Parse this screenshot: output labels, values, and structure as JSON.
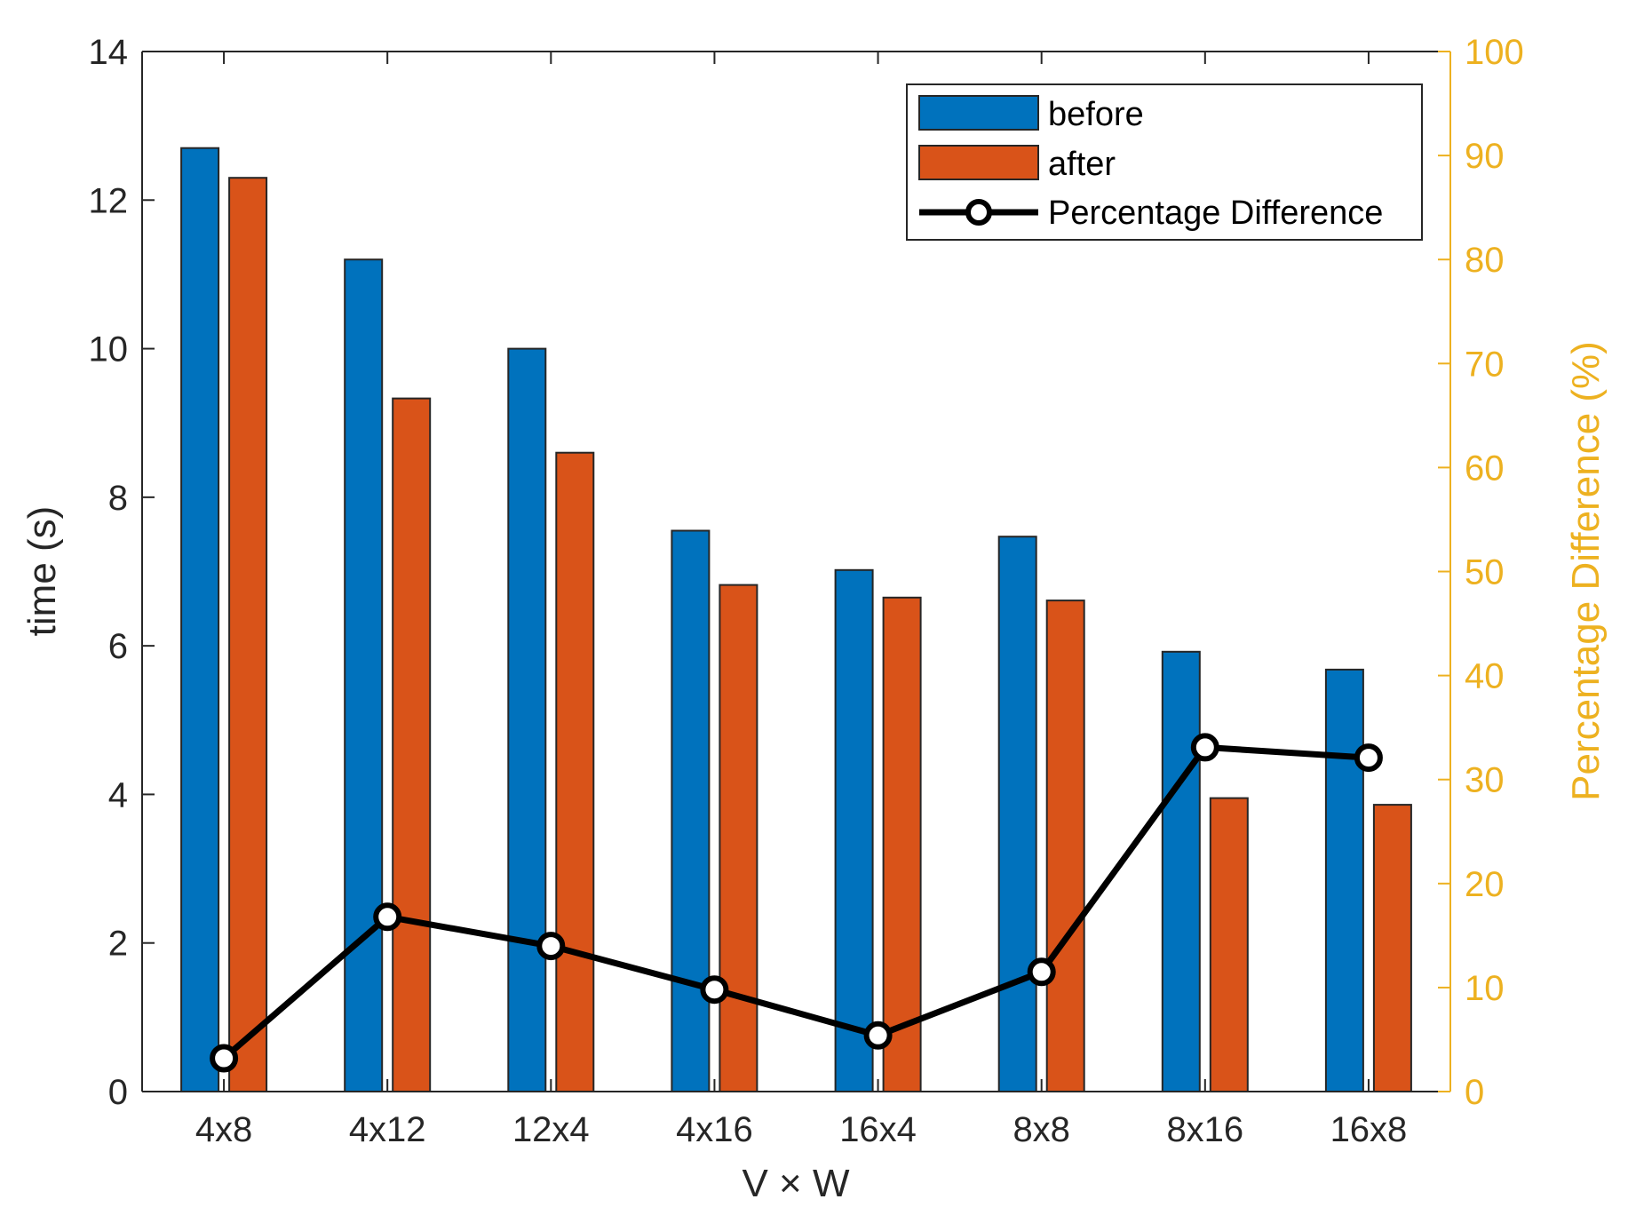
{
  "chart_data": {
    "type": "bar",
    "title": "",
    "categories": [
      "4x8",
      "4x12",
      "12x4",
      "4x16",
      "16x4",
      "8x8",
      "8x16",
      "16x8"
    ],
    "series": [
      {
        "name": "before",
        "color": "#0072BD",
        "values": [
          12.7,
          11.2,
          10.0,
          7.55,
          7.02,
          7.47,
          5.92,
          5.68
        ]
      },
      {
        "name": "after",
        "color": "#D95319",
        "values": [
          12.3,
          9.33,
          8.6,
          6.82,
          6.65,
          6.61,
          3.95,
          3.86
        ]
      }
    ],
    "line_series": {
      "name": "Percentage Difference",
      "color": "#000000",
      "axis": "right",
      "values": [
        3.2,
        16.8,
        14.0,
        9.8,
        5.4,
        11.5,
        33.1,
        32.1
      ]
    },
    "xlabel": "V × W",
    "ylabel": "time (s)",
    "ylim": [
      0,
      14
    ],
    "yticks": [
      0,
      2,
      4,
      6,
      8,
      10,
      12,
      14
    ],
    "y2label": "Percentage Difference (%)",
    "y2lim": [
      0,
      100
    ],
    "y2ticks": [
      0,
      10,
      20,
      30,
      40,
      50,
      60,
      70,
      80,
      90,
      100
    ],
    "y2color": "#EDB120",
    "legend_position": "top-right",
    "grid": false
  }
}
